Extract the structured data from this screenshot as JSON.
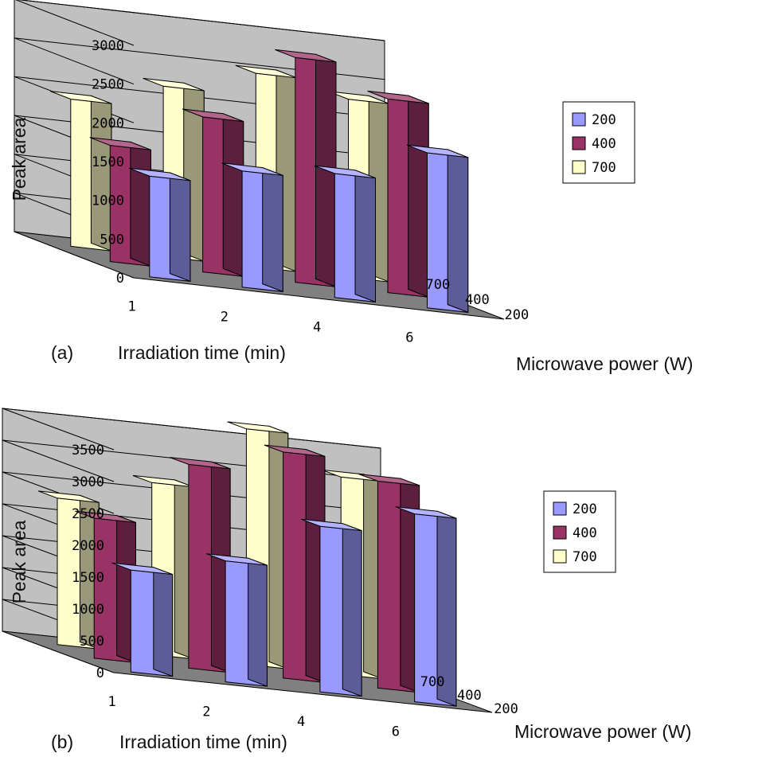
{
  "colors": {
    "s200": "#9999ff",
    "s400": "#993366",
    "s700": "#ffffcc",
    "back_wall": "#c0c0c0",
    "side_wall": "#d4d4d4",
    "floor": "#808080"
  },
  "chart_data": [
    {
      "type": "bar",
      "panel_label": "(a)",
      "xlabel": "Irradiation time (min)",
      "ylabel": "Peak area",
      "zlabel": "Microwave power (W)",
      "categories": [
        "1",
        "2",
        "4",
        "6"
      ],
      "depth_labels": [
        "700",
        "400",
        "200"
      ],
      "ylim": [
        0,
        3000
      ],
      "yticks": [
        "0",
        "500",
        "1000",
        "1500",
        "2000",
        "2500",
        "3000"
      ],
      "legend_position": "right",
      "grid": true,
      "series": [
        {
          "name": "200",
          "values": [
            1300,
            1500,
            1600,
            2000
          ]
        },
        {
          "name": "400",
          "values": [
            1500,
            2000,
            2900,
            2500
          ]
        },
        {
          "name": "700",
          "values": [
            1900,
            2200,
            2500,
            2300
          ]
        }
      ]
    },
    {
      "type": "bar",
      "panel_label": "(b)",
      "xlabel": "Irradiation time (min)",
      "ylabel": "Peak area",
      "zlabel": "Microwave power (W)",
      "categories": [
        "1",
        "2",
        "4",
        "6"
      ],
      "depth_labels": [
        "700",
        "400",
        "200"
      ],
      "ylim": [
        0,
        3500
      ],
      "yticks": [
        "0",
        "500",
        "1000",
        "1500",
        "2000",
        "2500",
        "3000",
        "3500"
      ],
      "legend_position": "right",
      "grid": true,
      "series": [
        {
          "name": "200",
          "values": [
            1600,
            1900,
            2600,
            2950
          ]
        },
        {
          "name": "400",
          "values": [
            2200,
            3200,
            3550,
            3250
          ]
        },
        {
          "name": "700",
          "values": [
            2300,
            2700,
            3700,
            3100
          ]
        }
      ]
    }
  ]
}
